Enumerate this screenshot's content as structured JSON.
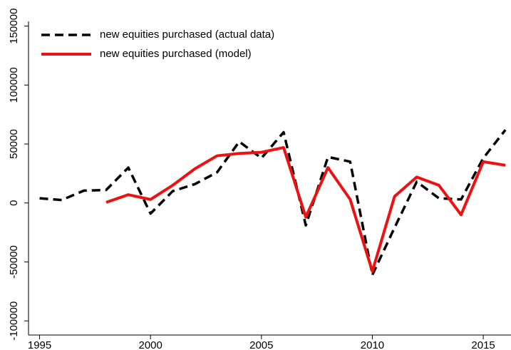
{
  "chart_data": {
    "type": "line",
    "x": [
      1995,
      1996,
      1997,
      1998,
      1999,
      2000,
      2001,
      2002,
      2003,
      2004,
      2005,
      2006,
      2007,
      2008,
      2009,
      2010,
      2011,
      2012,
      2013,
      2014,
      2015,
      2016
    ],
    "series": [
      {
        "name": "new equities purchased (actual data)",
        "color": "#000000",
        "dash": true,
        "values": [
          4000,
          2500,
          10500,
          11000,
          30000,
          -9000,
          10000,
          16000,
          26000,
          52000,
          38000,
          60000,
          -19000,
          39000,
          35000,
          -61000,
          -21000,
          18000,
          4000,
          3000,
          38000,
          62000
        ]
      },
      {
        "name": "new equities purchased (model)",
        "color": "#ee1111",
        "dash": false,
        "values": [
          null,
          null,
          null,
          500,
          7000,
          3000,
          15000,
          29000,
          40000,
          42000,
          43000,
          47000,
          -12000,
          30000,
          3000,
          -58000,
          5500,
          22000,
          15000,
          -10000,
          35000,
          32000
        ]
      }
    ],
    "xlim": [
      1994.5,
      2016.25
    ],
    "xticks": [
      1995,
      2000,
      2005,
      2010,
      2015
    ],
    "ylim": [
      -112000,
      154000
    ],
    "yticks": [
      -100000,
      -50000,
      0,
      50000,
      100000,
      150000
    ],
    "legend": "top-left",
    "grid": false
  }
}
